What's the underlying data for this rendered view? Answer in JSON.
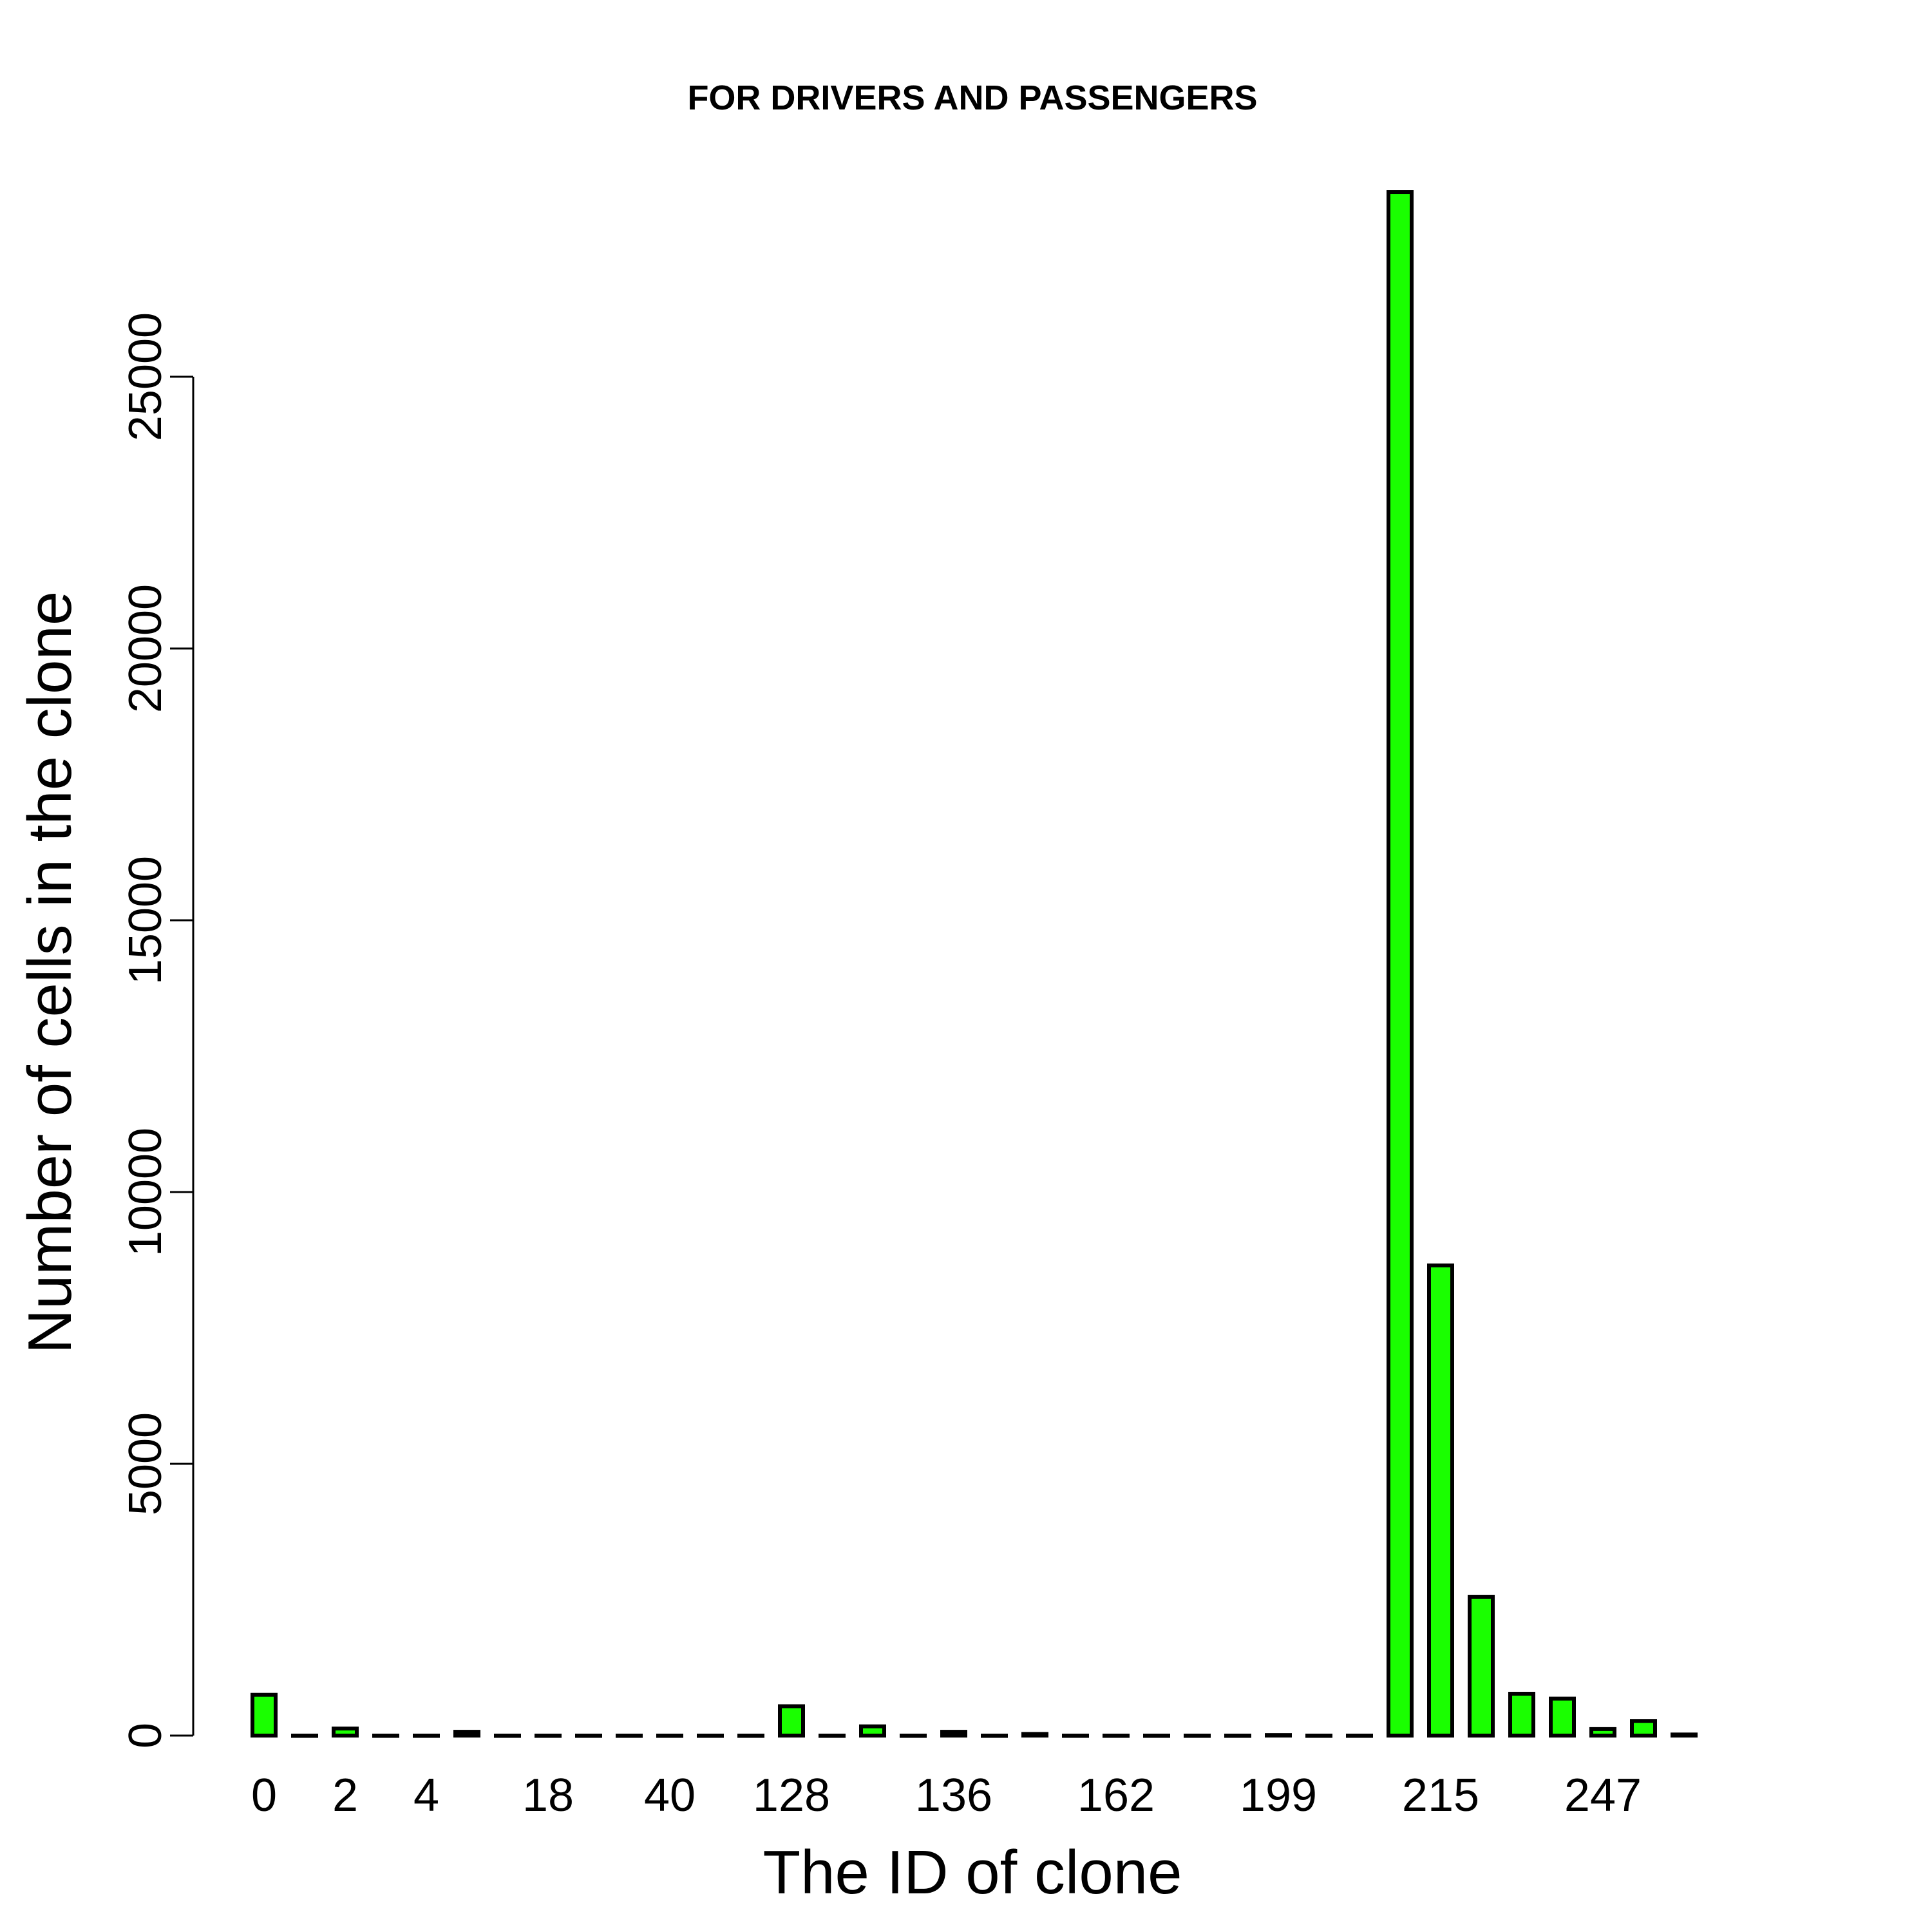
{
  "chart_data": {
    "type": "bar",
    "title": "FOR DRIVERS AND PASSENGERS",
    "xlabel": "The ID of clone",
    "ylabel": "Number of cells in the clone",
    "ylim": [
      0,
      28500
    ],
    "yticks": [
      0,
      5000,
      10000,
      15000,
      20000,
      25000
    ],
    "grid": false,
    "legend": "none",
    "bar_color": "#1aff00",
    "bar_edge_color": "#000000",
    "x_tick_labels": [
      {
        "index": 0,
        "label": "0"
      },
      {
        "index": 2,
        "label": "2"
      },
      {
        "index": 4,
        "label": "4"
      },
      {
        "index": 7,
        "label": "18"
      },
      {
        "index": 10,
        "label": "40"
      },
      {
        "index": 13,
        "label": "128"
      },
      {
        "index": 17,
        "label": "136"
      },
      {
        "index": 21,
        "label": "162"
      },
      {
        "index": 25,
        "label": "199"
      },
      {
        "index": 29,
        "label": "215"
      },
      {
        "index": 33,
        "label": "247"
      }
    ],
    "values": [
      750,
      0,
      130,
      0,
      0,
      70,
      0,
      0,
      0,
      0,
      0,
      0,
      0,
      540,
      0,
      170,
      0,
      70,
      0,
      30,
      0,
      0,
      0,
      0,
      0,
      10,
      0,
      0,
      28400,
      8650,
      2550,
      770,
      680,
      120,
      270,
      20
    ]
  }
}
